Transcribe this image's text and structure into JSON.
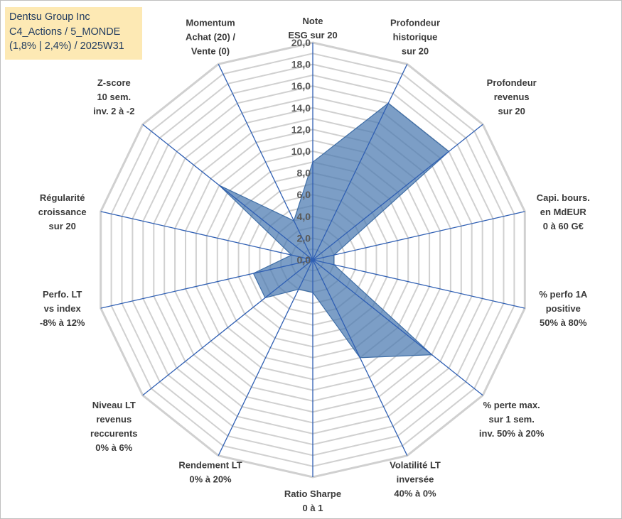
{
  "title_box": {
    "line1": "Dentsu Group Inc",
    "line2": "C4_Actions / 5_MONDE",
    "line3": "(1,8% | 2,4%) / 2025W31"
  },
  "colors": {
    "fill": "#4a78b0",
    "outline": "#3f6ea6",
    "axis": "#2f5fb3",
    "grid": "#d0d0d0",
    "title_bg": "#fde9b4"
  },
  "chart_data": {
    "type": "radar",
    "range": [
      0,
      20
    ],
    "tick_step": 2,
    "grid_step": 1,
    "ticks": [
      "0,0",
      "2,0",
      "4,0",
      "6,0",
      "8,0",
      "10,0",
      "12,0",
      "14,0",
      "16,0",
      "18,0",
      "20,0"
    ],
    "axes": [
      {
        "lines": [
          "Note",
          "ESG sur 20"
        ]
      },
      {
        "lines": [
          "Profondeur",
          "historique",
          "sur 20"
        ]
      },
      {
        "lines": [
          "Profondeur",
          "revenus",
          "sur 20"
        ]
      },
      {
        "lines": [
          "Capi. bours.",
          "en MdEUR",
          "0 à 60 G€"
        ]
      },
      {
        "lines": [
          "% perfo 1A",
          "positive",
          "50% à 80%"
        ]
      },
      {
        "lines": [
          "% perte max.",
          "sur 1 sem.",
          "inv. 50% à 20%"
        ]
      },
      {
        "lines": [
          "Volatilité LT",
          "inversée",
          "40% à 0%"
        ]
      },
      {
        "lines": [
          "Ratio Sharpe",
          "0 à 1"
        ]
      },
      {
        "lines": [
          "Rendement LT",
          "0% à 20%"
        ]
      },
      {
        "lines": [
          "Niveau LT",
          "revenus",
          "reccurents",
          "0% à 6%"
        ]
      },
      {
        "lines": [
          "Perfo. LT",
          "vs index",
          "-8% à 12%"
        ]
      },
      {
        "lines": [
          "Régularité",
          "croissance",
          "sur 20"
        ]
      },
      {
        "lines": [
          "Z-score",
          "10 sem.",
          "inv. 2 à -2"
        ]
      },
      {
        "lines": [
          "Momentum",
          "Achat (20) /",
          "Vente (0)"
        ]
      }
    ],
    "values": [
      9.0,
      16.0,
      16.0,
      2.0,
      2.0,
      14.0,
      10.0,
      3.0,
      3.0,
      5.6,
      5.6,
      2.0,
      11.0,
      4.0
    ]
  }
}
